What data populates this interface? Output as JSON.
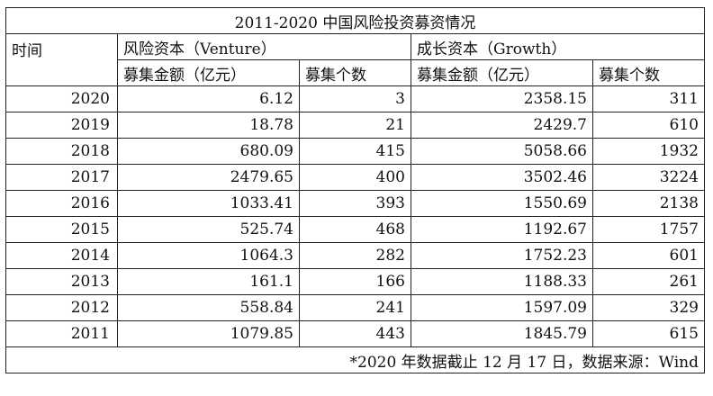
{
  "table": {
    "title": "2011-2020 中国风险投资募资情况",
    "time_header": "时间",
    "group_headers": [
      "风险资本（Venture）",
      "成长资本（Growth）"
    ],
    "sub_headers": [
      "募集金额（亿元）",
      "募集个数",
      "募集金额（亿元）",
      "募集个数"
    ],
    "rows": [
      {
        "year": "2020",
        "vc_amount": "6.12",
        "vc_count": "3",
        "gc_amount": "2358.15",
        "gc_count": "311"
      },
      {
        "year": "2019",
        "vc_amount": "18.78",
        "vc_count": "21",
        "gc_amount": "2429.7",
        "gc_count": "610"
      },
      {
        "year": "2018",
        "vc_amount": "680.09",
        "vc_count": "415",
        "gc_amount": "5058.66",
        "gc_count": "1932"
      },
      {
        "year": "2017",
        "vc_amount": "2479.65",
        "vc_count": "400",
        "gc_amount": "3502.46",
        "gc_count": "3224"
      },
      {
        "year": "2016",
        "vc_amount": "1033.41",
        "vc_count": "393",
        "gc_amount": "1550.69",
        "gc_count": "2138"
      },
      {
        "year": "2015",
        "vc_amount": "525.74",
        "vc_count": "468",
        "gc_amount": "1192.67",
        "gc_count": "1757"
      },
      {
        "year": "2014",
        "vc_amount": "1064.3",
        "vc_count": "282",
        "gc_amount": "1752.23",
        "gc_count": "601"
      },
      {
        "year": "2013",
        "vc_amount": "161.1",
        "vc_count": "166",
        "gc_amount": "1188.33",
        "gc_count": "261"
      },
      {
        "year": "2012",
        "vc_amount": "558.84",
        "vc_count": "241",
        "gc_amount": "1597.09",
        "gc_count": "329"
      },
      {
        "year": "2011",
        "vc_amount": "1079.85",
        "vc_count": "443",
        "gc_amount": "1845.79",
        "gc_count": "615"
      }
    ],
    "footnote": "*2020 年数据截止 12 月 17 日，数据来源：Wind"
  }
}
